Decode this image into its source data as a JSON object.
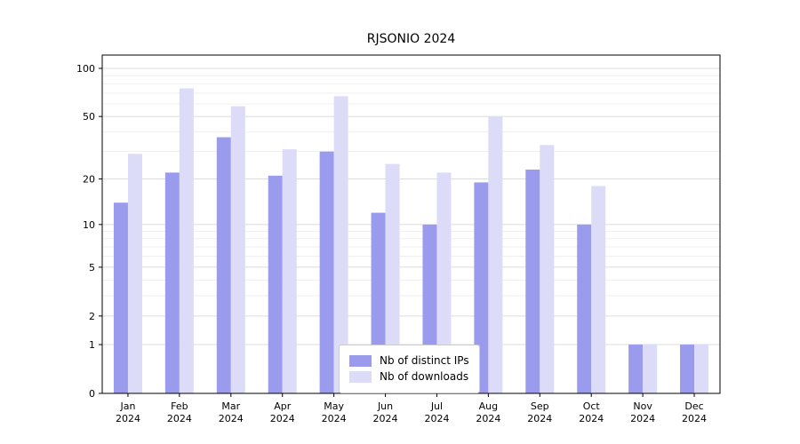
{
  "chart_data": {
    "type": "bar",
    "title": "RJSONIO 2024",
    "y_scale": "log1p",
    "categories": [
      "Jan",
      "Feb",
      "Mar",
      "Apr",
      "May",
      "Jun",
      "Jul",
      "Aug",
      "Sep",
      "Oct",
      "Nov",
      "Dec"
    ],
    "category_year": "2024",
    "series": [
      {
        "name": "Nb of distinct IPs",
        "color": "#9b9bee",
        "values": [
          14,
          22,
          37,
          21,
          30,
          12,
          10,
          19,
          23,
          10,
          1,
          1
        ]
      },
      {
        "name": "Nb of downloads",
        "color": "#dcdcf9",
        "values": [
          29,
          75,
          58,
          31,
          67,
          25,
          22,
          50,
          33,
          18,
          1,
          1
        ]
      }
    ],
    "y_ticks": [
      0,
      1,
      2,
      5,
      10,
      20,
      50,
      100
    ],
    "y_minor_ticks": [
      3,
      4,
      6,
      7,
      8,
      9,
      30,
      40,
      60,
      70,
      80,
      90
    ],
    "ylim": [
      0,
      121
    ],
    "grid": true,
    "legend_position": "bottom-center",
    "colors": {
      "grid_major": "#dcdcdc",
      "grid_minor": "#ececec",
      "axis": "#000000",
      "text": "#000000",
      "background": "#ffffff"
    }
  }
}
